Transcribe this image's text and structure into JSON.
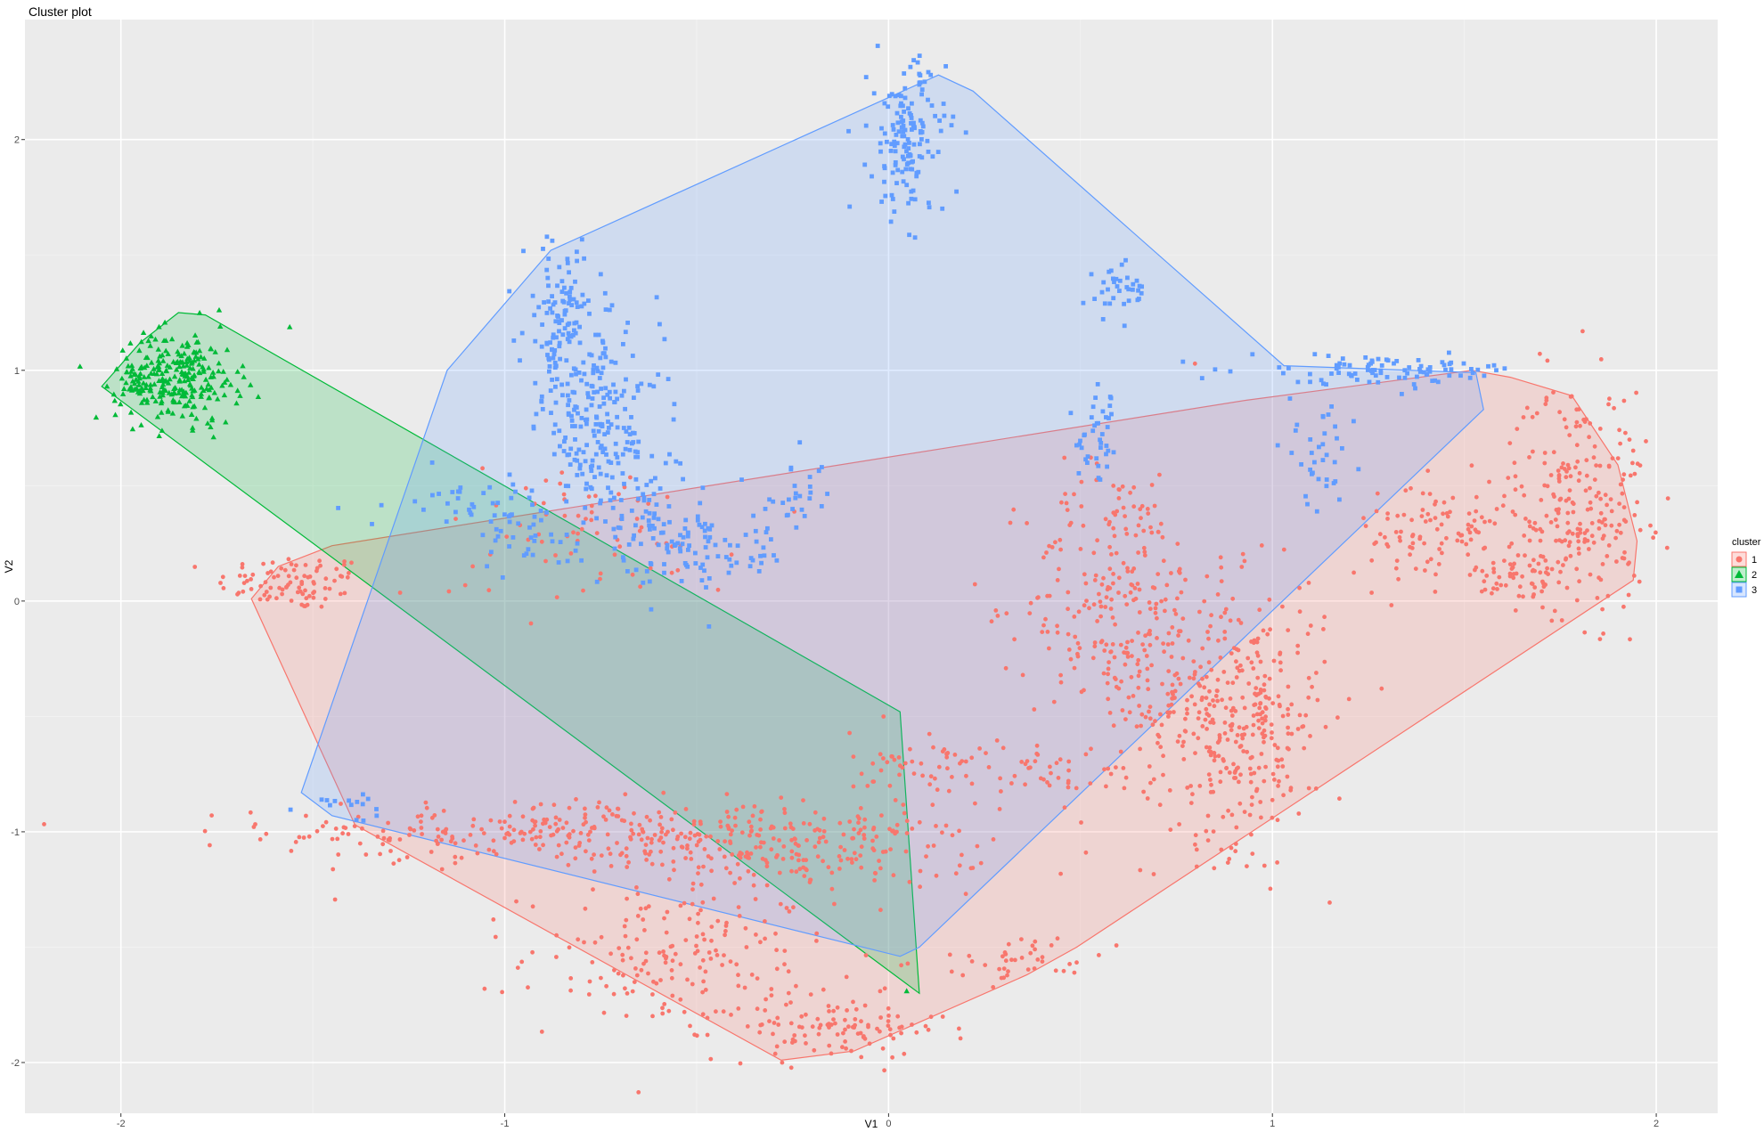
{
  "chart_data": {
    "type": "scatter",
    "title": "Cluster plot",
    "xlabel": "V1",
    "ylabel": "V2",
    "xlim": [
      -2.25,
      2.16
    ],
    "ylim": [
      -2.22,
      2.52
    ],
    "x_ticks": [
      -2,
      -1,
      0,
      1,
      2
    ],
    "y_ticks": [
      -2,
      -1,
      0,
      1,
      2
    ],
    "grid": true,
    "legend": {
      "title": "cluster",
      "position": "right",
      "entries": [
        {
          "label": "1",
          "shape": "circle"
        },
        {
          "label": "2",
          "shape": "triangle"
        },
        {
          "label": "3",
          "shape": "square"
        }
      ]
    },
    "colors": {
      "1": "#F8766D",
      "2": "#00BA38",
      "3": "#619CFF"
    },
    "series": [
      {
        "name": "1",
        "shape": "circle",
        "hull": [
          [
            -1.66,
            0.01
          ],
          [
            -1.59,
            0.15
          ],
          [
            -1.45,
            0.24
          ],
          [
            0.93,
            0.87
          ],
          [
            1.52,
            1.0
          ],
          [
            1.62,
            0.97
          ],
          [
            1.78,
            0.89
          ],
          [
            1.9,
            0.59
          ],
          [
            1.95,
            0.26
          ],
          [
            1.94,
            0.09
          ],
          [
            0.49,
            -1.5
          ],
          [
            0.36,
            -1.62
          ],
          [
            -0.09,
            -1.95
          ],
          [
            -0.28,
            -1.99
          ],
          [
            -1.39,
            -0.97
          ]
        ],
        "clusters": [
          {
            "cx": -1.55,
            "cy": 0.08,
            "sx": 0.1,
            "sy": 0.06,
            "n": 90
          },
          {
            "cx": -0.9,
            "cy": -1.0,
            "sx": 0.35,
            "sy": 0.07,
            "n": 260
          },
          {
            "cx": -0.25,
            "cy": -1.08,
            "sx": 0.25,
            "sy": 0.09,
            "n": 230
          },
          {
            "cx": -0.55,
            "cy": -1.55,
            "sx": 0.2,
            "sy": 0.15,
            "n": 170
          },
          {
            "cx": -0.15,
            "cy": -1.85,
            "sx": 0.15,
            "sy": 0.07,
            "n": 110
          },
          {
            "cx": 0.6,
            "cy": 0.0,
            "sx": 0.12,
            "sy": 0.3,
            "n": 260
          },
          {
            "cx": 0.9,
            "cy": -0.5,
            "sx": 0.12,
            "sy": 0.28,
            "n": 380
          },
          {
            "cx": 1.45,
            "cy": 0.3,
            "sx": 0.12,
            "sy": 0.12,
            "n": 110
          },
          {
            "cx": 1.8,
            "cy": 0.45,
            "sx": 0.09,
            "sy": 0.25,
            "n": 230
          },
          {
            "cx": 1.65,
            "cy": 0.1,
            "sx": 0.06,
            "sy": 0.07,
            "n": 50
          },
          {
            "cx": 0.1,
            "cy": -0.72,
            "sx": 0.1,
            "sy": 0.08,
            "n": 60
          },
          {
            "cx": 0.45,
            "cy": -0.75,
            "sx": 0.1,
            "sy": 0.05,
            "n": 40
          },
          {
            "cx": 0.35,
            "cy": -1.55,
            "sx": 0.1,
            "sy": 0.05,
            "n": 40
          },
          {
            "cx": -0.8,
            "cy": 0.3,
            "sx": 0.2,
            "sy": 0.15,
            "n": 70
          }
        ]
      },
      {
        "name": "2",
        "shape": "triangle",
        "hull": [
          [
            -2.05,
            0.93
          ],
          [
            -1.95,
            1.12
          ],
          [
            -1.85,
            1.25
          ],
          [
            -1.78,
            1.24
          ],
          [
            0.03,
            -0.48
          ],
          [
            0.08,
            -1.7
          ]
        ],
        "clusters": [
          {
            "cx": -1.85,
            "cy": 0.97,
            "sx": 0.08,
            "sy": 0.1,
            "n": 250
          },
          {
            "cx": -1.95,
            "cy": 0.93,
            "sx": 0.04,
            "sy": 0.05,
            "n": 25
          },
          {
            "cx": 0.05,
            "cy": -1.7,
            "sx": 0.01,
            "sy": 0.01,
            "n": 1
          }
        ]
      },
      {
        "name": "3",
        "shape": "square",
        "hull": [
          [
            -1.53,
            -0.83
          ],
          [
            -1.45,
            -0.93
          ],
          [
            0.03,
            -1.54
          ],
          [
            0.08,
            -1.5
          ],
          [
            1.55,
            0.83
          ],
          [
            1.53,
            0.99
          ],
          [
            1.03,
            1.02
          ],
          [
            0.22,
            2.21
          ],
          [
            0.13,
            2.28
          ],
          [
            -0.88,
            1.52
          ],
          [
            -1.15,
            1.0
          ]
        ],
        "clusters": [
          {
            "cx": 0.05,
            "cy": 2.0,
            "sx": 0.05,
            "sy": 0.17,
            "n": 150
          },
          {
            "cx": -0.85,
            "cy": 1.2,
            "sx": 0.05,
            "sy": 0.18,
            "n": 130
          },
          {
            "cx": -0.75,
            "cy": 0.75,
            "sx": 0.08,
            "sy": 0.2,
            "n": 200
          },
          {
            "cx": -0.6,
            "cy": 0.3,
            "sx": 0.08,
            "sy": 0.12,
            "n": 80
          },
          {
            "cx": -0.45,
            "cy": 0.2,
            "sx": 0.1,
            "sy": 0.06,
            "n": 50
          },
          {
            "cx": -0.25,
            "cy": 0.45,
            "sx": 0.05,
            "sy": 0.08,
            "n": 30
          },
          {
            "cx": 0.6,
            "cy": 1.35,
            "sx": 0.04,
            "sy": 0.06,
            "n": 35
          },
          {
            "cx": 0.55,
            "cy": 0.7,
            "sx": 0.03,
            "sy": 0.1,
            "n": 40
          },
          {
            "cx": 1.3,
            "cy": 1.0,
            "sx": 0.18,
            "sy": 0.03,
            "n": 90
          },
          {
            "cx": 1.12,
            "cy": 0.65,
            "sx": 0.04,
            "sy": 0.15,
            "n": 40
          },
          {
            "cx": -1.1,
            "cy": 0.45,
            "sx": 0.1,
            "sy": 0.05,
            "n": 30
          },
          {
            "cx": -0.95,
            "cy": 0.28,
            "sx": 0.06,
            "sy": 0.08,
            "n": 40
          },
          {
            "cx": -1.42,
            "cy": -0.88,
            "sx": 0.05,
            "sy": 0.03,
            "n": 15
          }
        ]
      }
    ]
  }
}
